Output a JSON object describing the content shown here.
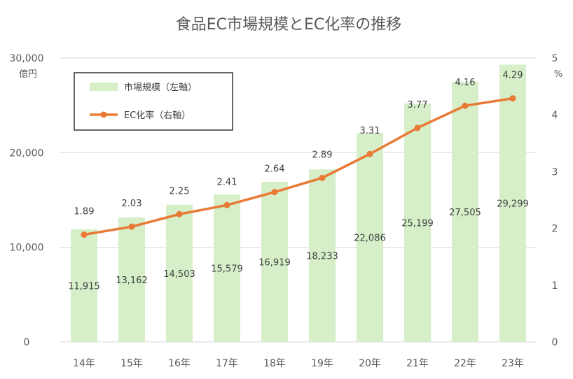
{
  "chart_data": {
    "type": "bar+line",
    "title": "食品EC市場規模とEC化率の推移",
    "categories": [
      "14年",
      "15年",
      "16年",
      "17年",
      "18年",
      "19年",
      "20年",
      "21年",
      "22年",
      "23年"
    ],
    "left_axis": {
      "unit": "億円",
      "ylim": [
        0,
        30000
      ],
      "ticks": [
        "0",
        "10,000",
        "20,000",
        "30,000"
      ],
      "tick_values": [
        0,
        10000,
        20000,
        30000
      ]
    },
    "right_axis": {
      "unit": "%",
      "ylim": [
        0,
        5
      ],
      "ticks": [
        "0",
        "1",
        "2",
        "3",
        "4",
        "5"
      ],
      "tick_values": [
        0,
        1,
        2,
        3,
        4,
        5
      ]
    },
    "series": [
      {
        "name": "市場規模（左軸）",
        "type": "bar",
        "axis": "left",
        "color": "#d6efc9",
        "values": [
          11915,
          13162,
          14503,
          15579,
          16919,
          18233,
          22086,
          25199,
          27505,
          29299
        ],
        "labels": [
          "11,915",
          "13,162",
          "14,503",
          "15,579",
          "16,919",
          "18,233",
          "22,086",
          "25,199",
          "27,505",
          "29,299"
        ]
      },
      {
        "name": "EC化率（右軸）",
        "type": "line",
        "axis": "right",
        "color": "#e87a35",
        "values": [
          1.89,
          2.03,
          2.25,
          2.41,
          2.64,
          2.89,
          3.31,
          3.77,
          4.16,
          4.29
        ],
        "labels": [
          "1.89",
          "2.03",
          "2.25",
          "2.41",
          "2.64",
          "2.89",
          "3.31",
          "3.77",
          "4.16",
          "4.29"
        ]
      }
    ],
    "grid": true,
    "legend_position": "top-left"
  }
}
